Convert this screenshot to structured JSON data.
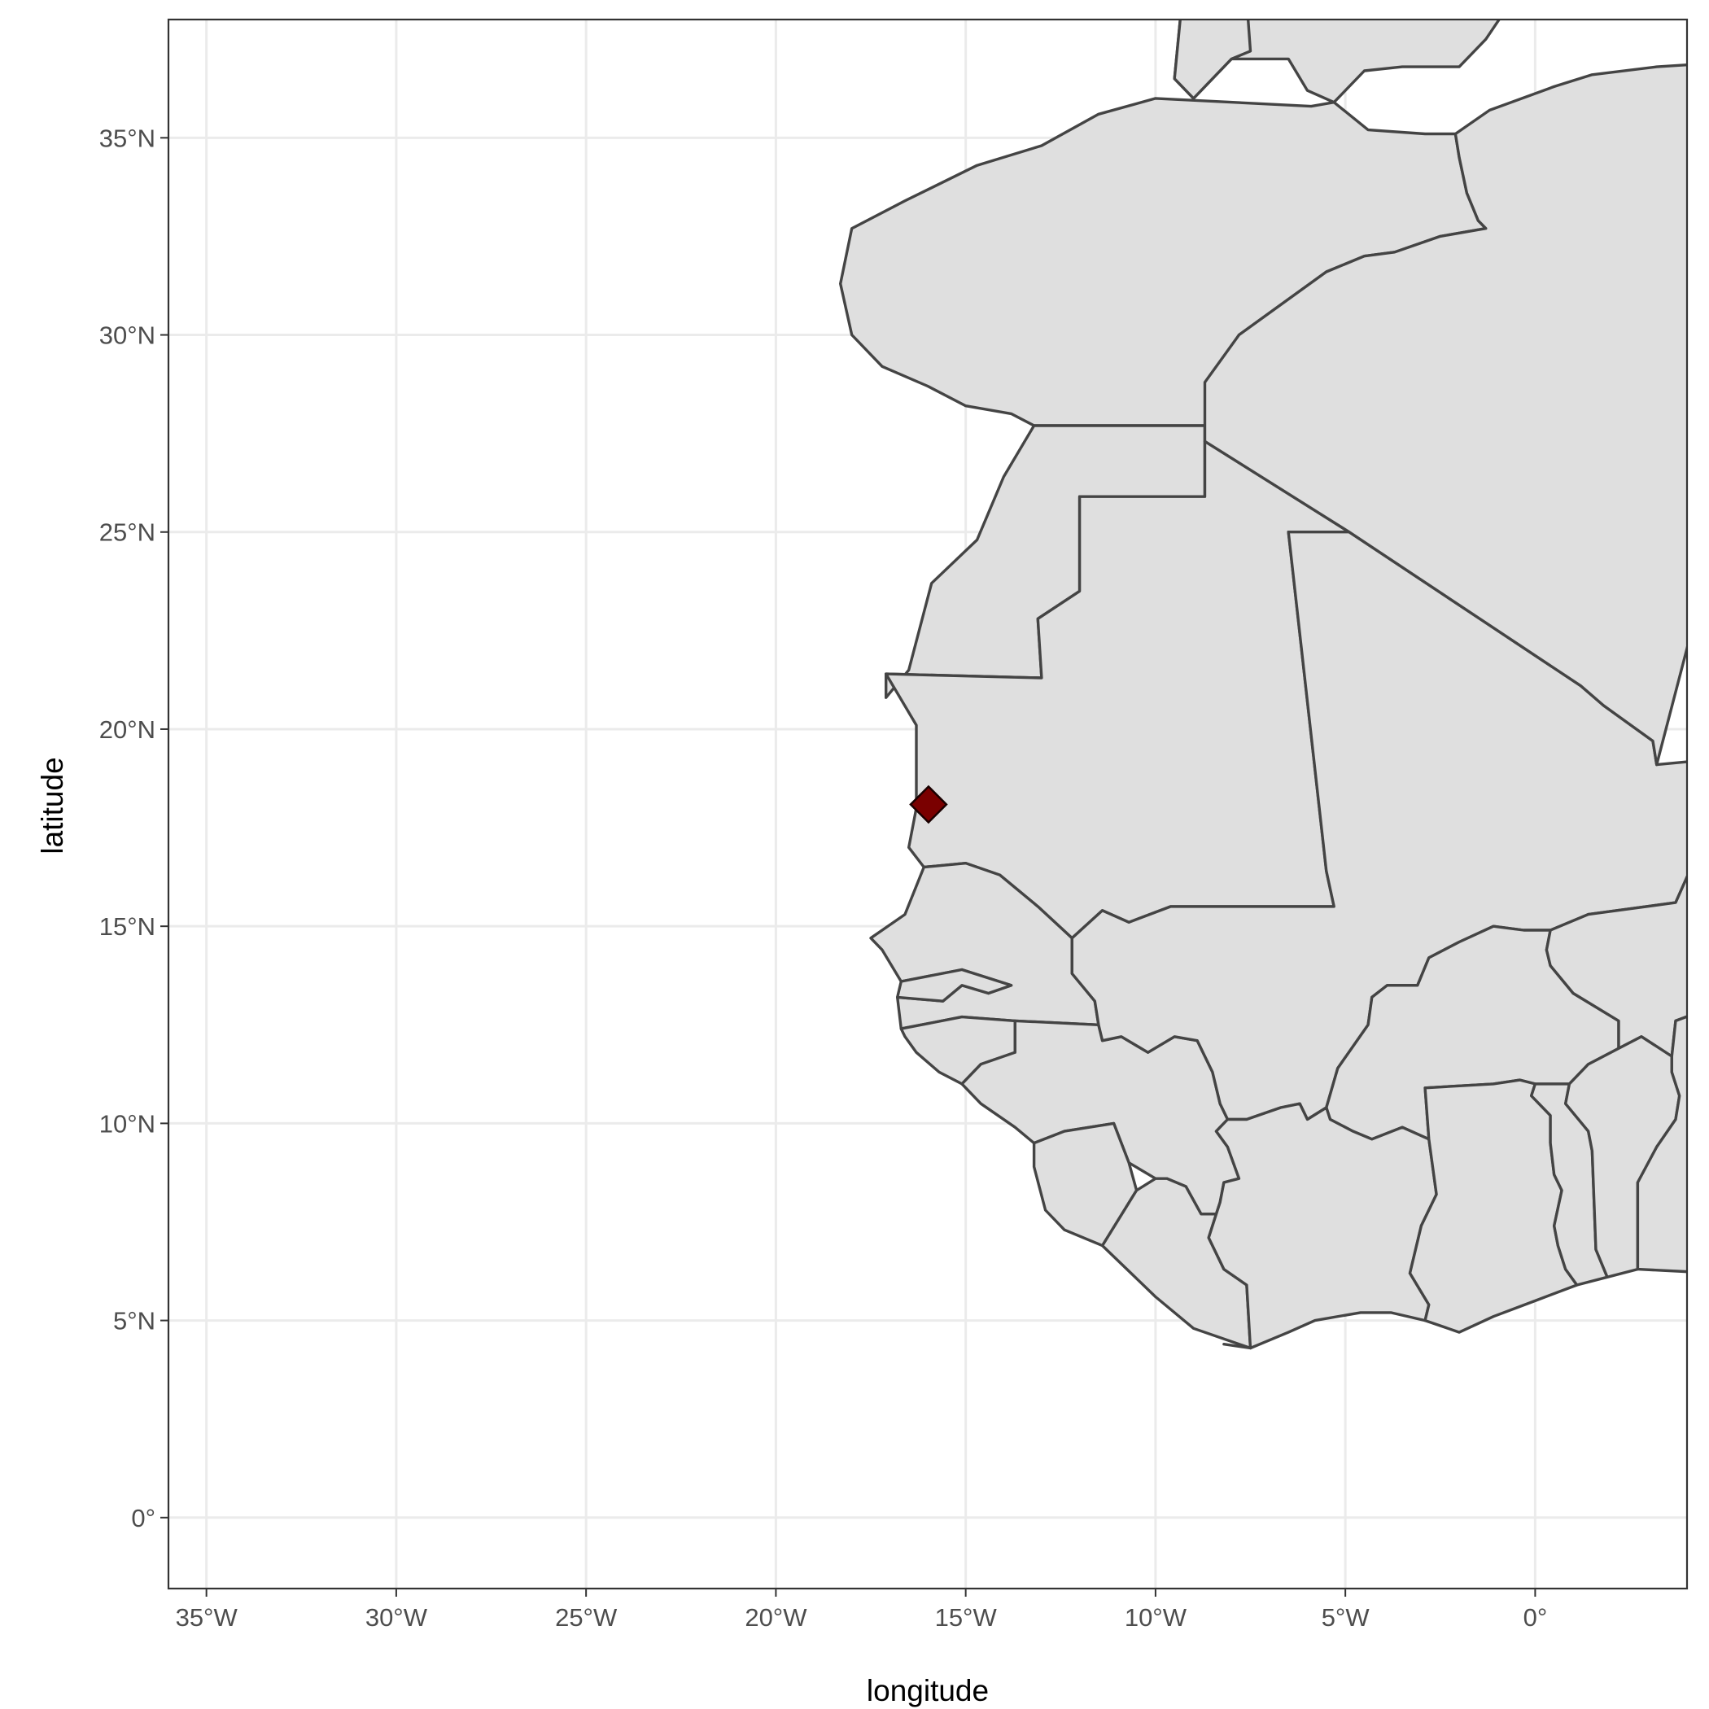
{
  "chart_data": {
    "type": "map",
    "projection": "equirectangular",
    "xlabel": "longitude",
    "ylabel": "latitude",
    "xlim": [
      -36,
      4
    ],
    "ylim": [
      -1.8,
      38
    ],
    "grid": true,
    "x_ticks": [
      {
        "value": -35,
        "label": "35°W"
      },
      {
        "value": -30,
        "label": "30°W"
      },
      {
        "value": -25,
        "label": "25°W"
      },
      {
        "value": -20,
        "label": "20°W"
      },
      {
        "value": -15,
        "label": "15°W"
      },
      {
        "value": -10,
        "label": "10°W"
      },
      {
        "value": -5,
        "label": "5°W"
      },
      {
        "value": 0,
        "label": "0°"
      }
    ],
    "y_ticks": [
      {
        "value": 0,
        "label": "0°"
      },
      {
        "value": 5,
        "label": "5°N"
      },
      {
        "value": 10,
        "label": "10°N"
      },
      {
        "value": 15,
        "label": "15°N"
      },
      {
        "value": 20,
        "label": "20°N"
      },
      {
        "value": 25,
        "label": "25°N"
      },
      {
        "value": 30,
        "label": "30°N"
      },
      {
        "value": 35,
        "label": "35°N"
      }
    ],
    "points": [
      {
        "lon": -15.98,
        "lat": 18.09,
        "shape": "diamond",
        "color": "#7a0000"
      }
    ],
    "colors": {
      "land": "#dfdfdf",
      "border": "#444444",
      "grid": "#ebebeb",
      "panel_border": "#333333"
    }
  }
}
